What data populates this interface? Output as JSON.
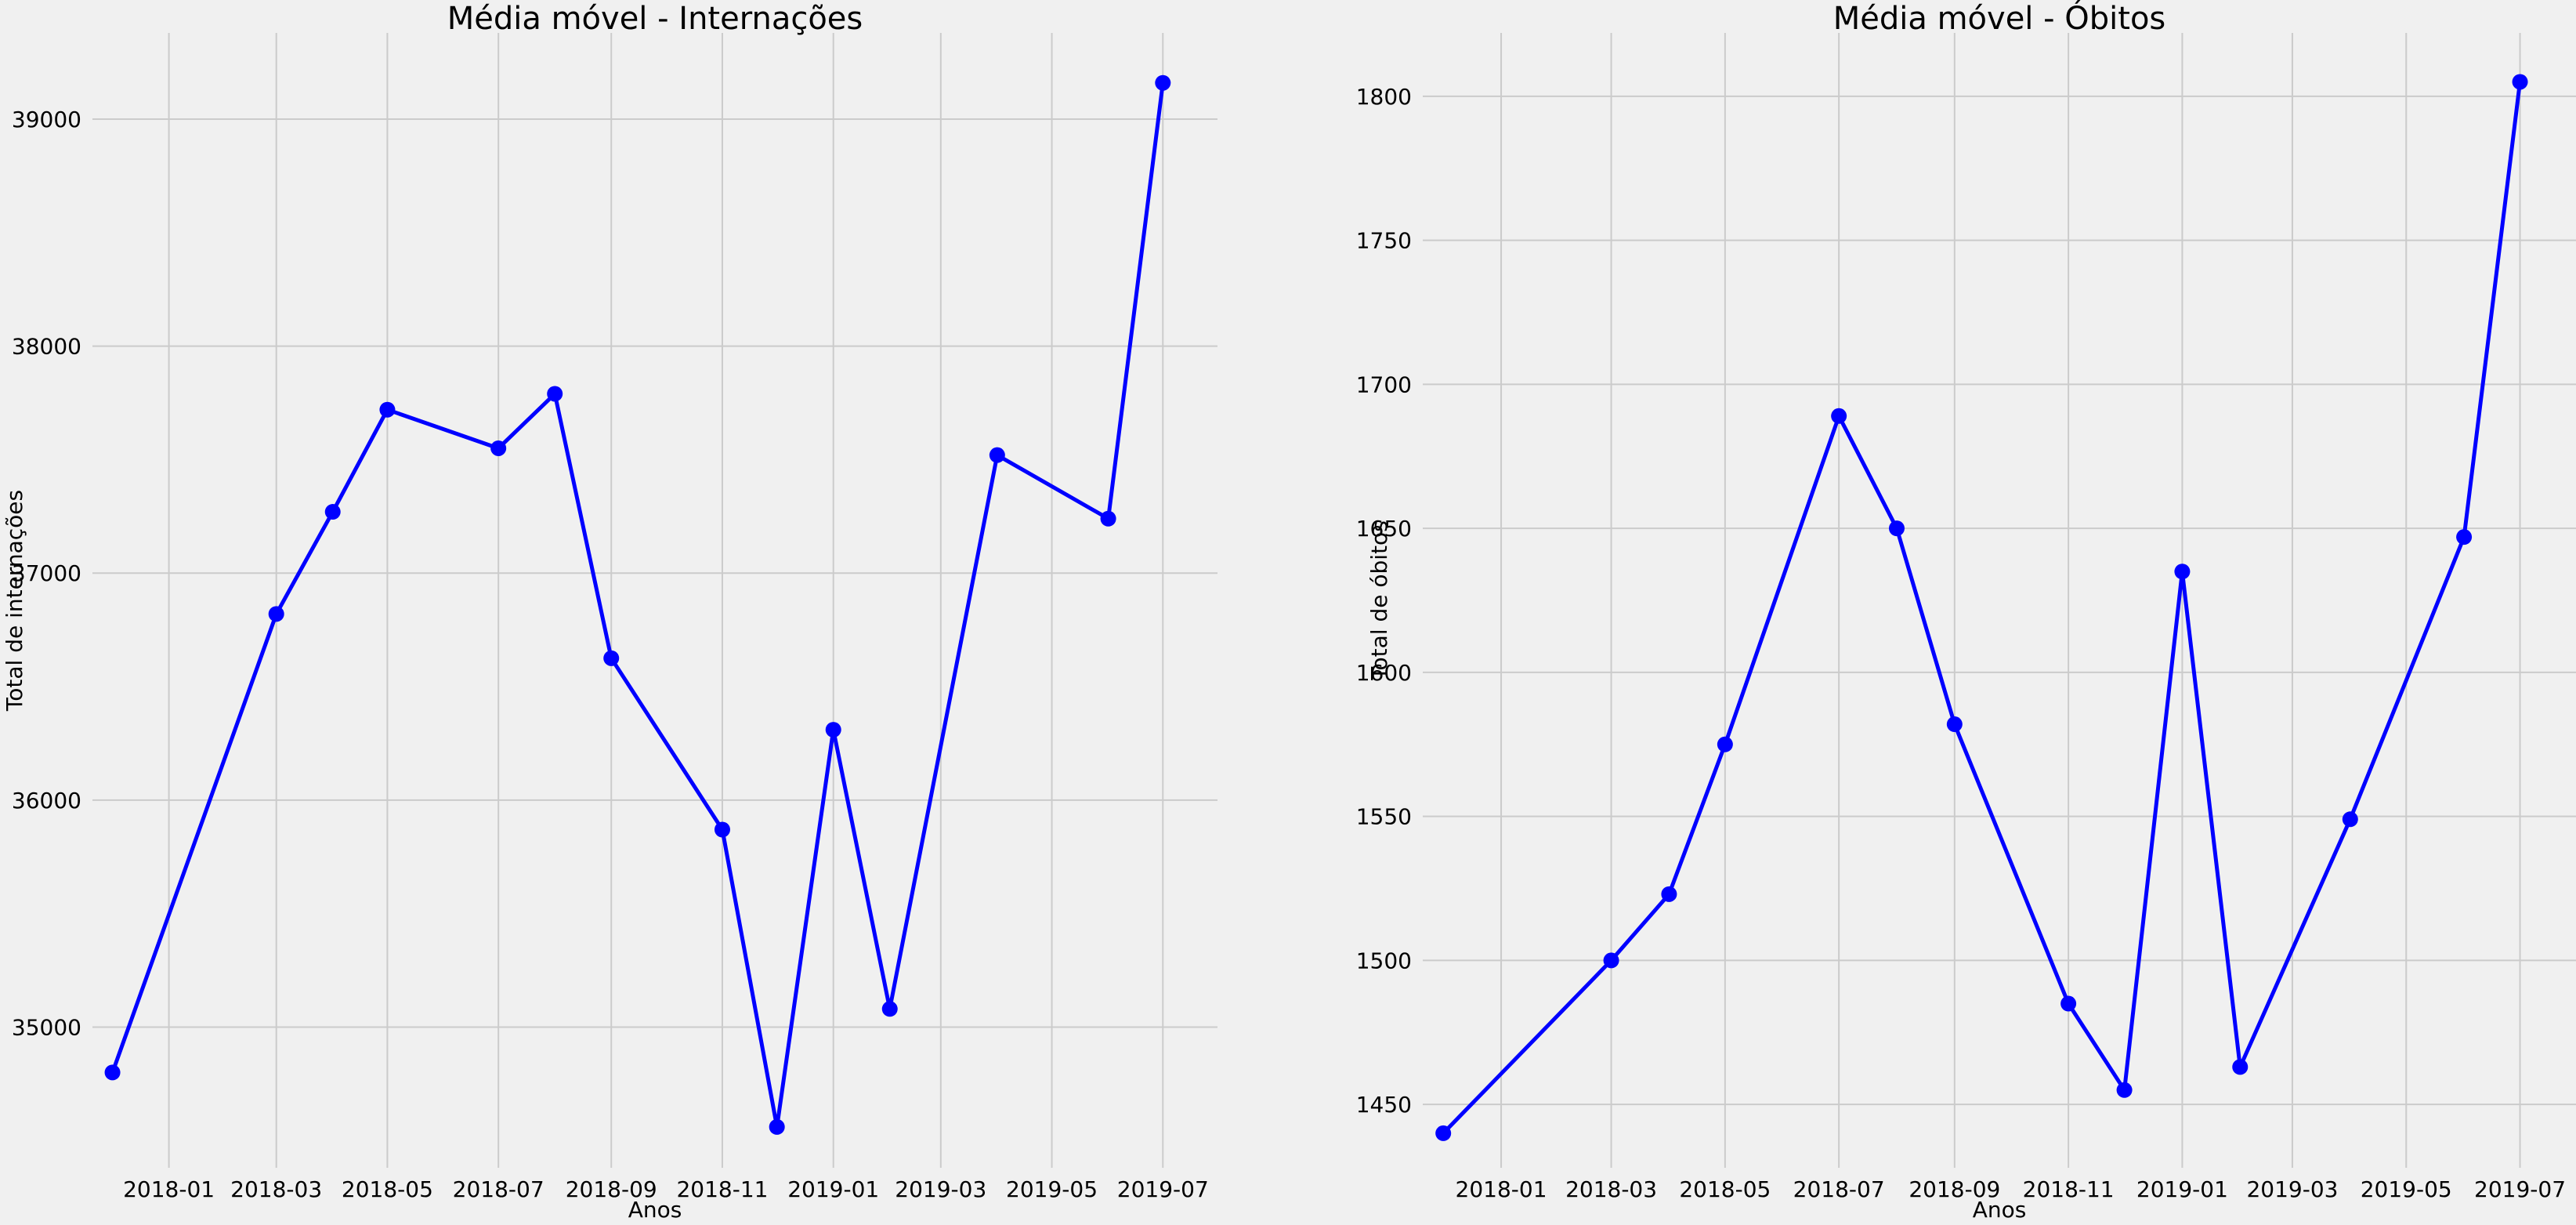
{
  "chart_data": [
    {
      "type": "line",
      "title": "Média móvel - Internações",
      "xlabel": "Anos",
      "ylabel": "Total de internações",
      "x_ticks": [
        "2018-01-01",
        "2018-03-01",
        "2018-05-01",
        "2018-07-01",
        "2018-09-01",
        "2018-11-01",
        "2019-01-01",
        "2019-03-01",
        "2019-05-01",
        "2019-07-01"
      ],
      "x_tick_labels": [
        "2018-01",
        "2018-03",
        "2018-05",
        "2018-07",
        "2018-09",
        "2018-11",
        "2019-01",
        "2019-03",
        "2019-05",
        "2019-07"
      ],
      "y_ticks": [
        35000,
        36000,
        37000,
        38000,
        39000
      ],
      "y_tick_labels": [
        "35000",
        "36000",
        "37000",
        "38000",
        "39000"
      ],
      "xlim": [
        "2017-11-20",
        "2019-07-31"
      ],
      "ylim": [
        34380,
        39380
      ],
      "grid": true,
      "color": "#0000ff",
      "series": [
        {
          "x": [
            "2017-12-01",
            "2018-03-01",
            "2018-04-01",
            "2018-05-01",
            "2018-07-01",
            "2018-08-01",
            "2018-09-01",
            "2018-11-01",
            "2018-12-01",
            "2019-01-01",
            "2019-02-01",
            "2019-04-01",
            "2019-06-01",
            "2019-07-01"
          ],
          "y": [
            34800,
            36820,
            37270,
            37720,
            37550,
            37790,
            36625,
            35870,
            34560,
            36310,
            35080,
            37520,
            37240,
            39160
          ]
        }
      ]
    },
    {
      "type": "line",
      "title": "Média móvel - Óbitos",
      "xlabel": "Anos",
      "ylabel": "Total de óbitos",
      "x_ticks": [
        "2018-01-01",
        "2018-03-01",
        "2018-05-01",
        "2018-07-01",
        "2018-09-01",
        "2018-11-01",
        "2019-01-01",
        "2019-03-01",
        "2019-05-01",
        "2019-07-01"
      ],
      "x_tick_labels": [
        "2018-01",
        "2018-03",
        "2018-05",
        "2018-07",
        "2018-09",
        "2018-11",
        "2019-01",
        "2019-03",
        "2019-05",
        "2019-07"
      ],
      "y_ticks": [
        1450,
        1500,
        1550,
        1600,
        1650,
        1700,
        1750,
        1800
      ],
      "y_tick_labels": [
        "1450",
        "1500",
        "1550",
        "1600",
        "1650",
        "1700",
        "1750",
        "1800"
      ],
      "xlim": [
        "2017-11-20",
        "2019-07-31"
      ],
      "ylim": [
        1428,
        1822
      ],
      "grid": true,
      "color": "#0000ff",
      "series": [
        {
          "x": [
            "2017-12-01",
            "2018-03-01",
            "2018-04-01",
            "2018-05-01",
            "2018-07-01",
            "2018-08-01",
            "2018-09-01",
            "2018-11-01",
            "2018-12-01",
            "2019-01-01",
            "2019-02-01",
            "2019-04-01",
            "2019-06-01",
            "2019-07-01"
          ],
          "y": [
            1440,
            1500,
            1523,
            1575,
            1689,
            1650,
            1582,
            1485,
            1455,
            1635,
            1463,
            1549,
            1647,
            1805
          ]
        }
      ]
    }
  ]
}
